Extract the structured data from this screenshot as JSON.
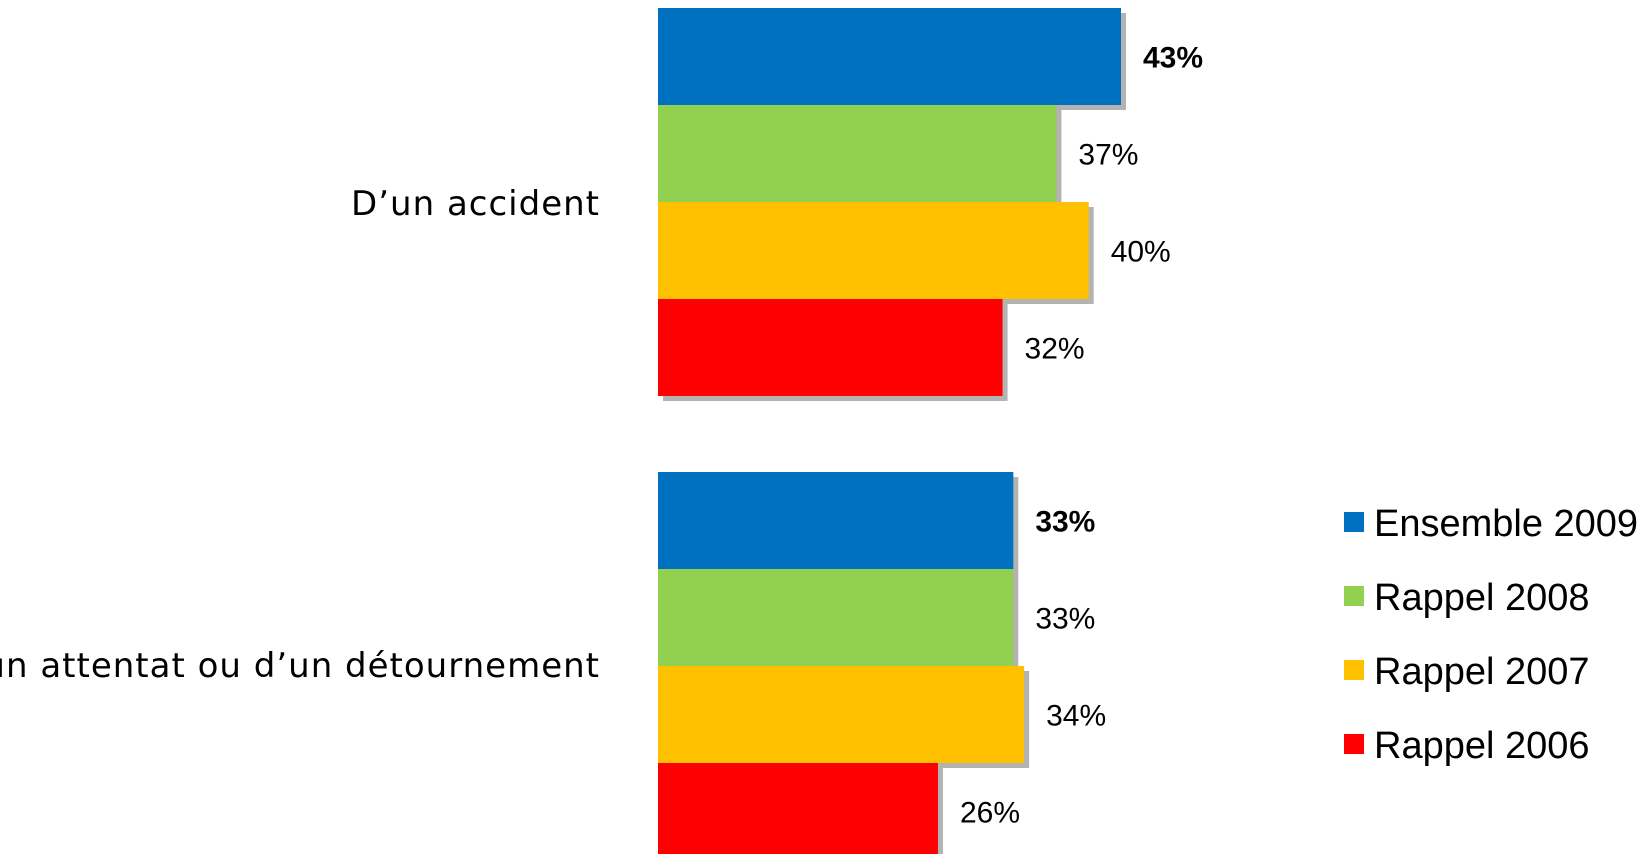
{
  "chart_data": {
    "type": "bar",
    "orientation": "horizontal",
    "categories": [
      "D’un accident",
      "D’un attentat ou d’un détournement"
    ],
    "series": [
      {
        "name": "Ensemble 2009",
        "color": "#0070C0",
        "values": [
          43,
          33
        ],
        "labels": [
          "43%",
          "33%"
        ],
        "bold": true
      },
      {
        "name": "Rappel 2008",
        "color": "#92D050",
        "values": [
          37,
          33
        ],
        "labels": [
          "37%",
          "33%"
        ],
        "bold": false
      },
      {
        "name": "Rappel 2007",
        "color": "#FFC000",
        "values": [
          40,
          34
        ],
        "labels": [
          "40%",
          "34%"
        ],
        "bold": false
      },
      {
        "name": "Rappel 2006",
        "color": "#FF0000",
        "values": [
          32,
          26
        ],
        "labels": [
          "32%",
          "26%"
        ],
        "bold": false
      }
    ],
    "xlim": [
      0,
      43
    ],
    "grid": false,
    "legend_position": "right"
  }
}
